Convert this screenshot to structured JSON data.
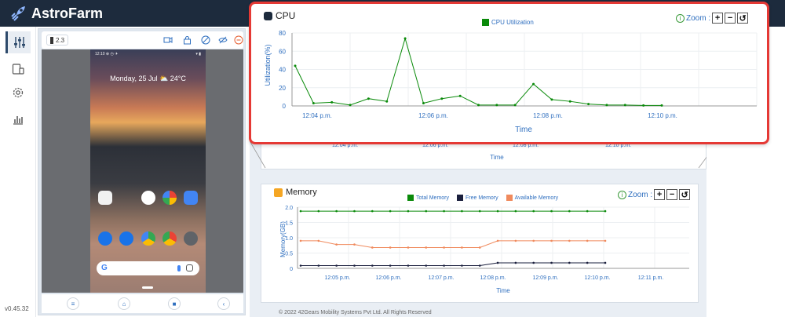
{
  "app": {
    "title": "AstroFarm",
    "version": "v0.45.32"
  },
  "device": {
    "battery": "2.3",
    "status_time": "12:10 ⊕ ◷ ✈",
    "status_right": "▾ ▮",
    "weather": "Monday, 25 Jul ⛅ 24°C",
    "search_letter": "G"
  },
  "cpu": {
    "title": "CPU",
    "zoom_label": "Zoom :",
    "zoom_in": "+",
    "zoom_out": "−",
    "zoom_reset": "↺",
    "legend": "CPU Utilization",
    "color": "#0a8a0a",
    "chart_data": {
      "type": "line",
      "xlabel": "Time",
      "ylabel": "Utilization(%)",
      "ylim": [
        0,
        80
      ],
      "yticks": [
        0,
        20,
        40,
        60,
        80
      ],
      "xtick_labels": [
        "12:04 p.m.",
        "12:06 p.m.",
        "12:08 p.m.",
        "12:10 p.m."
      ],
      "series": [
        {
          "name": "CPU Utilization",
          "values": [
            44,
            3,
            4,
            1,
            8,
            5,
            74,
            3,
            8,
            11,
            1,
            1,
            1,
            24,
            7,
            5,
            2,
            1,
            1,
            0.5,
            0.5
          ]
        }
      ]
    }
  },
  "hidden_axis": {
    "xlabel": "Time",
    "xtick_labels": [
      "12:04 p.m.",
      "12:06 p.m.",
      "12:08 p.m.",
      "12:10 p.m."
    ]
  },
  "memory": {
    "title": "Memory",
    "zoom_label": "Zoom :",
    "zoom_in": "+",
    "zoom_out": "−",
    "zoom_reset": "↺",
    "legend": [
      "Total Memory",
      "Free Memory",
      "Available Memory"
    ],
    "colors": [
      "#0a8a0a",
      "#1a1f3d",
      "#f08a5d"
    ],
    "chart_data": {
      "type": "line",
      "xlabel": "Time",
      "ylabel": "Memory(GB)",
      "ylim": [
        0,
        2
      ],
      "yticks": [
        "0",
        "0.5",
        "1.0",
        "1.5",
        "2.0"
      ],
      "xtick_labels": [
        "12:05 p.m.",
        "12:06 p.m.",
        "12:07 p.m.",
        "12:08 p.m.",
        "12:09 p.m.",
        "12:10 p.m.",
        "12:11 p.m."
      ],
      "series": [
        {
          "name": "Total Memory",
          "values": [
            1.87,
            1.87,
            1.87,
            1.87,
            1.87,
            1.87,
            1.87,
            1.87,
            1.87,
            1.87,
            1.87,
            1.87,
            1.87,
            1.87,
            1.87,
            1.87,
            1.87,
            1.87
          ]
        },
        {
          "name": "Free Memory",
          "values": [
            0.09,
            0.09,
            0.09,
            0.09,
            0.09,
            0.09,
            0.09,
            0.09,
            0.09,
            0.09,
            0.09,
            0.18,
            0.18,
            0.18,
            0.18,
            0.18,
            0.18,
            0.18
          ]
        },
        {
          "name": "Available Memory",
          "values": [
            0.9,
            0.9,
            0.78,
            0.78,
            0.68,
            0.68,
            0.68,
            0.68,
            0.68,
            0.68,
            0.68,
            0.9,
            0.9,
            0.9,
            0.9,
            0.9,
            0.9,
            0.9
          ]
        }
      ]
    }
  },
  "footer": "© 2022 42Gears Mobility Systems Pvt Ltd. All Rights Reserved"
}
